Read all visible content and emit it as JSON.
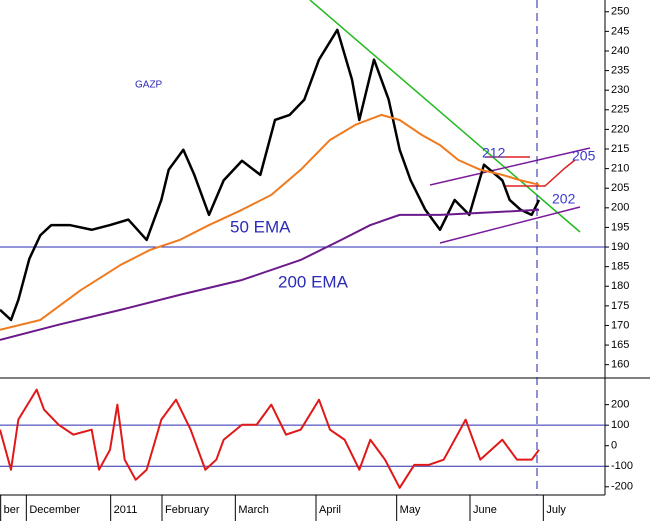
{
  "chart_data": [
    {
      "type": "line",
      "annotations": [
        "GAZP",
        "50 EMA",
        "200 EMA",
        "212",
        "205",
        "202"
      ],
      "ylim": [
        156.6,
        253
      ],
      "xlim": [
        0,
        165
      ],
      "yticks": [
        160,
        165,
        170,
        175,
        180,
        185,
        190,
        195,
        200,
        205,
        210,
        215,
        220,
        225,
        230,
        235,
        240,
        245,
        250
      ],
      "reference_lines": [
        190
      ],
      "series": [
        {
          "color": "#000000",
          "x": [
            0,
            3,
            5,
            8,
            11,
            14,
            19,
            25,
            30,
            35,
            40,
            44,
            46,
            50,
            53,
            57,
            61,
            66,
            71,
            75,
            79,
            83,
            87,
            92,
            96,
            98,
            102,
            106,
            109,
            112,
            116,
            120,
            124,
            128,
            132,
            137,
            139,
            142,
            145,
            147
          ],
          "values": [
            174,
            171.4,
            176.5,
            187,
            193,
            195.6,
            195.6,
            194.4,
            195.6,
            197,
            191.8,
            202,
            209.7,
            214.8,
            208.4,
            198.2,
            207,
            212,
            208.4,
            222.4,
            223.7,
            227.6,
            237.8,
            245.4,
            232.7,
            222.4,
            237.8,
            227.6,
            214.8,
            207,
            199.5,
            194.4,
            202,
            198.2,
            211,
            207,
            202,
            199.5,
            198.2,
            202
          ]
        },
        {
          "color": "#f07a1e",
          "x": [
            0,
            11,
            22,
            33,
            41,
            49,
            57,
            66,
            74,
            82,
            90,
            97,
            104,
            109,
            115,
            120,
            125,
            131,
            137,
            142,
            147
          ],
          "values": [
            168.9,
            171.4,
            179,
            185.5,
            189.3,
            191.8,
            195.6,
            199.5,
            203.3,
            209.7,
            217.3,
            221.2,
            223.7,
            222.4,
            218.6,
            216,
            212.2,
            209.7,
            208.4,
            207,
            205.9
          ]
        },
        {
          "color": "#6b1a8c",
          "x": [
            0,
            16,
            33,
            49,
            66,
            82,
            93,
            101,
            109,
            120,
            131,
            147
          ],
          "values": [
            166.3,
            170.2,
            174,
            177.8,
            181.6,
            186.7,
            191.8,
            195.6,
            198.2,
            198.2,
            198.7,
            199.5
          ]
        }
      ]
    },
    {
      "type": "line",
      "ylim": [
        -240,
        320
      ],
      "xlim": [
        0,
        165
      ],
      "yticks": [
        200,
        100,
        0,
        -100,
        -200
      ],
      "reference_lines": [
        100,
        -100
      ],
      "xticks": [
        {
          "value": 1,
          "label": "ber"
        },
        {
          "value": 8,
          "label": "December"
        },
        {
          "value": 31,
          "label": "2011"
        },
        {
          "value": 45,
          "label": "February"
        },
        {
          "value": 65,
          "label": "March"
        },
        {
          "value": 87,
          "label": "April"
        },
        {
          "value": 109,
          "label": "May"
        },
        {
          "value": 129,
          "label": "June"
        },
        {
          "value": 149,
          "label": "July"
        }
      ],
      "series": [
        {
          "color": "#e01818",
          "x": [
            0,
            3,
            5,
            10,
            12,
            16,
            20,
            25,
            27,
            30,
            32,
            34,
            37,
            40,
            44,
            48,
            52,
            56,
            59,
            61,
            66,
            70,
            74,
            78,
            82,
            87,
            90,
            94,
            98,
            101,
            105,
            109,
            113,
            117,
            121,
            127,
            131,
            137,
            141,
            145,
            147
          ],
          "values": [
            78,
            -117,
            127,
            273,
            176,
            102,
            54,
            78,
            -117,
            -20,
            200,
            -68,
            -166,
            -117,
            127,
            224,
            78,
            -117,
            -68,
            29,
            102,
            102,
            200,
            54,
            78,
            224,
            78,
            29,
            -117,
            29,
            -68,
            -205,
            -93,
            -93,
            -68,
            127,
            -68,
            29,
            -68,
            -68,
            -20
          ]
        }
      ]
    }
  ]
}
